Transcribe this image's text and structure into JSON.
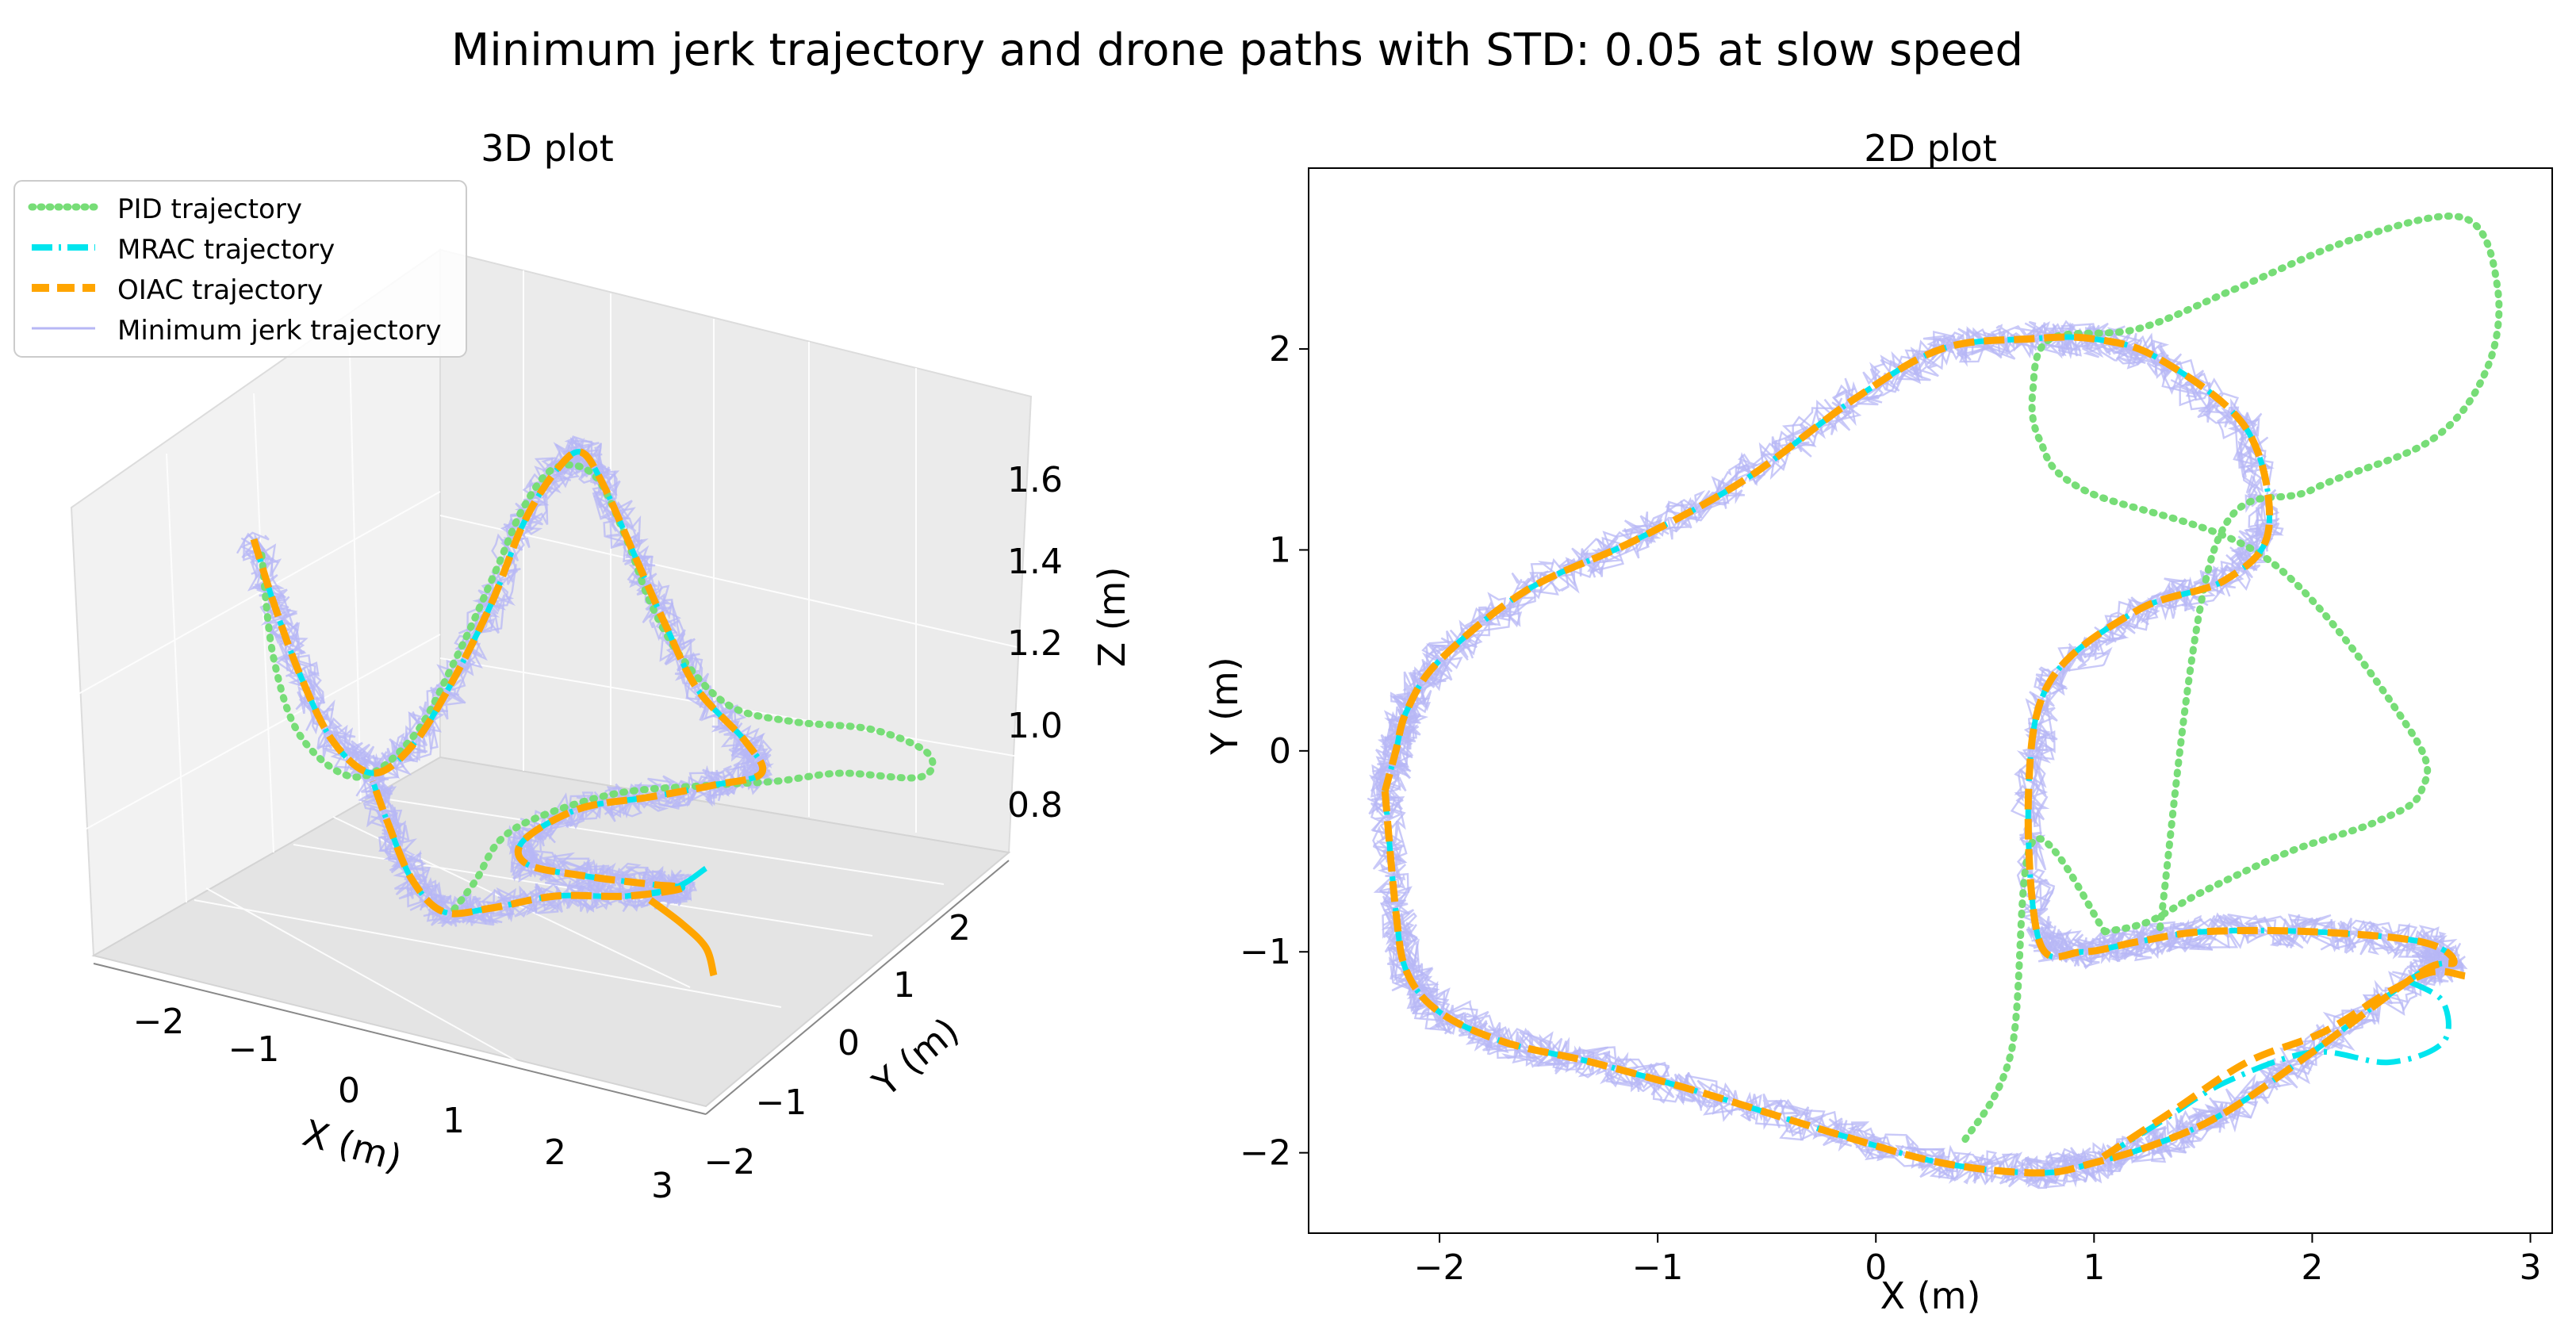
{
  "figure_title": "Minimum jerk trajectory and drone paths with STD: 0.05 at slow speed",
  "colors": {
    "pid": "#77dd77",
    "mrac": "#00e5ee",
    "oiac": "#ffa500",
    "minjerk": "#b7b7f5",
    "x_label": "#ff0000",
    "y_label": "#008000",
    "z_label": "#0000ff"
  },
  "chart_data": [
    {
      "type": "line3d",
      "title": "3D plot",
      "xlabel": "X (m)",
      "ylabel": "Y (m)",
      "zlabel": "Z (m)",
      "xticks": [
        "−2",
        "−1",
        "0",
        "1",
        "2",
        "3"
      ],
      "yticks": [
        "−2",
        "−1",
        "0",
        "1",
        "2"
      ],
      "zticks": [
        "0.8",
        "1.0",
        "1.2",
        "1.4",
        "1.6"
      ],
      "legend": {
        "position": "top-left",
        "entries": [
          "PID trajectory",
          "MRAC trajectory",
          "OIAC trajectory",
          "Minimum jerk trajectory"
        ]
      }
    },
    {
      "type": "line",
      "title": "2D plot",
      "xlabel": "X (m)",
      "ylabel": "Y (m)",
      "xlim": [
        -2.6,
        3.1
      ],
      "ylim": [
        -2.4,
        2.9
      ],
      "xticks": [
        -2,
        -1,
        0,
        1,
        2,
        3
      ],
      "yticks": [
        -2,
        -1,
        0,
        1,
        2
      ],
      "xtick_labels": [
        "−2",
        "−1",
        "0",
        "1",
        "2",
        "3"
      ],
      "ytick_labels": [
        "−2",
        "−1",
        "0",
        "1",
        "2"
      ],
      "series": [
        {
          "name": "Minimum jerk trajectory",
          "style": "solid-noisy",
          "x": [
            -2.25,
            -2.2,
            -2.15,
            -2.0,
            -1.7,
            -1.3,
            -0.8,
            -0.2,
            0.3,
            0.75,
            1.0,
            1.3,
            1.6,
            2.0,
            2.5,
            2.65,
            2.5,
            2.0,
            1.5,
            1.2,
            0.95,
            0.75,
            0.7,
            0.8,
            1.2,
            1.6,
            1.8,
            1.7,
            1.3,
            1.0,
            0.7,
            0.3,
            -0.1,
            -0.6,
            -1.1,
            -1.6,
            -2.0,
            -2.15,
            -2.2,
            -2.25
          ],
          "y": [
            -0.2,
            -0.8,
            -1.1,
            -1.3,
            -1.45,
            -1.55,
            -1.7,
            -1.9,
            -2.05,
            -2.1,
            -2.05,
            -1.95,
            -1.8,
            -1.5,
            -1.1,
            -1.05,
            -0.95,
            -0.9,
            -0.9,
            -0.95,
            -1.0,
            -0.95,
            -0.2,
            0.35,
            0.7,
            0.85,
            1.1,
            1.6,
            1.95,
            2.05,
            2.05,
            2.0,
            1.75,
            1.35,
            1.05,
            0.8,
            0.45,
            0.2,
            0.0,
            -0.2
          ]
        },
        {
          "name": "PID trajectory",
          "style": "dotted",
          "x": [
            1.05,
            1.25,
            1.5,
            1.9,
            2.3,
            2.5,
            2.45,
            1.8,
            0.95,
            0.75,
            0.72,
            0.8,
            1.2,
            1.65,
            2.2,
            2.7,
            2.85,
            2.8,
            2.55,
            2.0,
            1.55,
            1.3
          ],
          "y": [
            -0.9,
            -0.85,
            -0.7,
            -0.5,
            -0.35,
            -0.2,
            0.1,
            0.95,
            1.3,
            1.55,
            1.8,
            2.05,
            2.1,
            2.3,
            2.55,
            2.65,
            2.3,
            1.9,
            1.55,
            1.3,
            1.0,
            -0.9
          ]
        },
        {
          "name": "MRAC trajectory",
          "style": "dash-dot",
          "x": [
            2.45,
            2.6,
            2.6,
            2.35,
            2.0,
            1.6,
            1.3,
            1.0
          ],
          "y": [
            -1.15,
            -1.25,
            -1.45,
            -1.55,
            -1.5,
            -1.65,
            -1.85,
            -2.05
          ]
        },
        {
          "name": "OIAC trajectory",
          "style": "dashed",
          "x": [
            2.7,
            2.55,
            2.35,
            2.05,
            1.7,
            1.35,
            1.0
          ],
          "y": [
            -1.12,
            -1.1,
            -1.2,
            -1.4,
            -1.55,
            -1.8,
            -2.05
          ]
        }
      ]
    }
  ]
}
